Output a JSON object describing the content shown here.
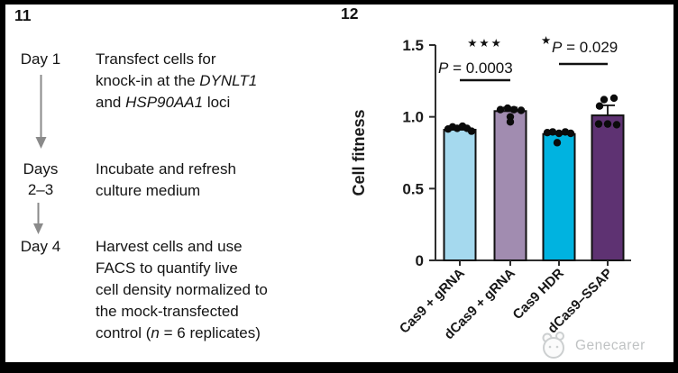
{
  "panel_protocol": {
    "label": "11",
    "steps": [
      {
        "day": [
          "Day 1"
        ],
        "lines": [
          [
            {
              "t": "Transfect cells for"
            }
          ],
          [
            {
              "t": "knock-in at the "
            },
            {
              "t": "DYNLT1",
              "i": true
            }
          ],
          [
            {
              "t": "and "
            },
            {
              "t": "HSP90AA1",
              "i": true
            },
            {
              "t": " loci"
            }
          ]
        ]
      },
      {
        "day": [
          "Days",
          "2–3"
        ],
        "lines": [
          [
            {
              "t": "Incubate and refresh"
            }
          ],
          [
            {
              "t": "culture medium"
            }
          ]
        ]
      },
      {
        "day": [
          "Day 4"
        ],
        "lines": [
          [
            {
              "t": "Harvest cells and use"
            }
          ],
          [
            {
              "t": "FACS to quantify live"
            }
          ],
          [
            {
              "t": "cell density normalized to"
            }
          ],
          [
            {
              "t": "the mock-transfected"
            }
          ],
          [
            {
              "t": "control ("
            },
            {
              "t": "n",
              "i": true
            },
            {
              "t": " = 6 replicates)"
            }
          ]
        ]
      }
    ]
  },
  "panel_chart": {
    "label": "12",
    "chart_data": {
      "type": "bar",
      "title": "",
      "xlabel": "",
      "ylabel": "Cell fitness",
      "ylim": [
        0,
        1.5
      ],
      "grid": false,
      "yticks": [
        {
          "v": 0,
          "label": "0"
        },
        {
          "v": 0.5,
          "label": "0.5"
        },
        {
          "v": 1.0,
          "label": "1.0"
        },
        {
          "v": 1.5,
          "label": "1.5"
        }
      ],
      "categories": [
        "Cas9 + gRNA",
        "dCas9 + gRNA",
        "Cas9 HDR",
        "dCas9–SSAP"
      ],
      "values": [
        0.91,
        1.04,
        0.88,
        1.01
      ],
      "bar_colors": [
        "#a5d9ee",
        "#a18cb0",
        "#00b3e0",
        "#5e3272"
      ],
      "bar_outline": "#111111",
      "error_up": [
        null,
        0.025,
        null,
        0.07
      ],
      "points": [
        [
          {
            "dx": -13,
            "v": 0.915
          },
          {
            "dx": -8,
            "v": 0.93
          },
          {
            "dx": -3,
            "v": 0.92
          },
          {
            "dx": 3,
            "v": 0.935
          },
          {
            "dx": 8,
            "v": 0.92
          },
          {
            "dx": 13,
            "v": 0.9
          }
        ],
        [
          {
            "dx": -11,
            "v": 1.05
          },
          {
            "dx": -3,
            "v": 1.06
          },
          {
            "dx": 4,
            "v": 1.05
          },
          {
            "dx": 12,
            "v": 1.045
          },
          {
            "dx": 0,
            "v": 1.0
          },
          {
            "dx": 0,
            "v": 0.965
          }
        ],
        [
          {
            "dx": -13,
            "v": 0.89
          },
          {
            "dx": -7,
            "v": 0.895
          },
          {
            "dx": 0,
            "v": 0.885
          },
          {
            "dx": 7,
            "v": 0.895
          },
          {
            "dx": 13,
            "v": 0.885
          },
          {
            "dx": -2,
            "v": 0.82
          }
        ],
        [
          {
            "dx": -4,
            "v": 1.12
          },
          {
            "dx": 7,
            "v": 1.13
          },
          {
            "dx": -9,
            "v": 1.075
          },
          {
            "dx": -10,
            "v": 0.95
          },
          {
            "dx": 0,
            "v": 0.95
          },
          {
            "dx": 10,
            "v": 0.945
          }
        ]
      ],
      "annotations": [
        {
          "stars": "***",
          "p_text": "P = 0.0003",
          "between": [
            0,
            1
          ]
        },
        {
          "stars": "*",
          "p_text": "P = 0.029",
          "between": [
            2,
            3
          ]
        }
      ],
      "legend": null
    }
  },
  "watermark": {
    "text": "Genecarer"
  }
}
